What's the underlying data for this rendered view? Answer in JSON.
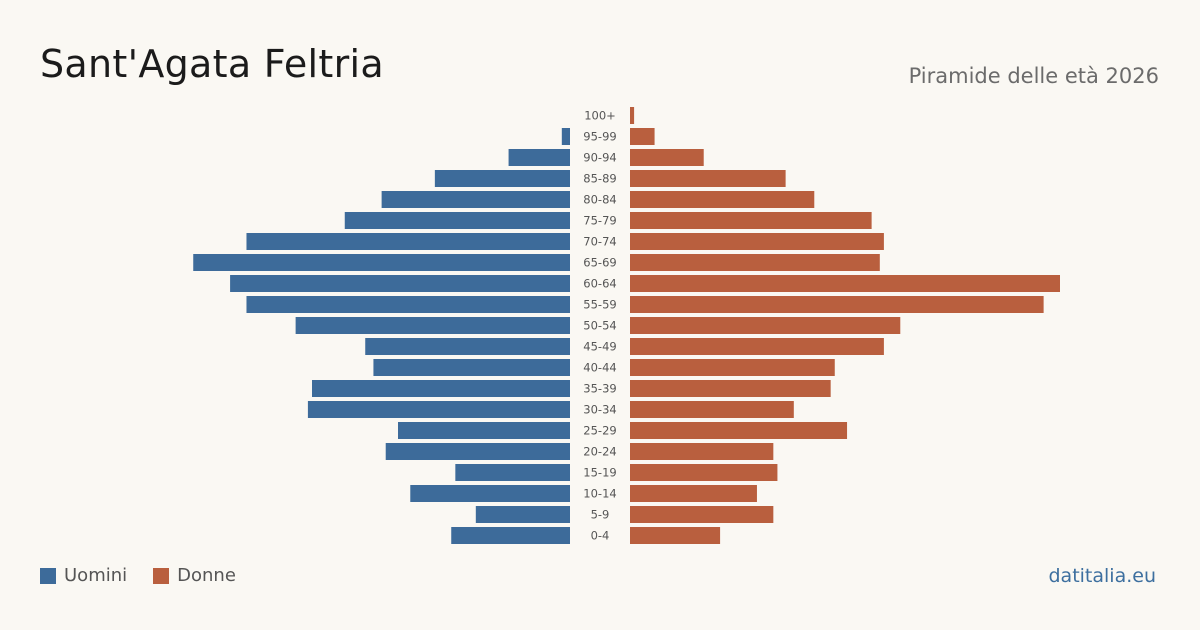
{
  "header": {
    "title": "Sant'Agata Feltria",
    "subtitle": "Piramide delle età 2026"
  },
  "legend": {
    "male_label": "Uomini",
    "female_label": "Donne"
  },
  "footer": {
    "site": "datitalia.eu"
  },
  "colors": {
    "male": "#3d6b9a",
    "female": "#b95f3e",
    "background": "#faf8f3"
  },
  "chart_data": {
    "type": "bar",
    "orientation": "horizontal-pyramid",
    "categories": [
      "100+",
      "95-99",
      "90-94",
      "85-89",
      "80-84",
      "75-79",
      "70-74",
      "65-69",
      "60-64",
      "55-59",
      "50-54",
      "45-49",
      "40-44",
      "35-39",
      "30-34",
      "25-29",
      "20-24",
      "15-19",
      "10-14",
      "5-9",
      "0-4"
    ],
    "series": [
      {
        "name": "Uomini",
        "values": [
          0,
          2,
          15,
          33,
          46,
          55,
          79,
          92,
          83,
          79,
          67,
          50,
          48,
          63,
          64,
          42,
          45,
          28,
          39,
          23,
          29
        ]
      },
      {
        "name": "Donne",
        "values": [
          1,
          6,
          18,
          38,
          45,
          59,
          62,
          61,
          105,
          101,
          66,
          62,
          50,
          49,
          40,
          53,
          35,
          36,
          31,
          35,
          22
        ]
      }
    ],
    "xlim": [
      0,
      105
    ],
    "legend_position": "bottom-left",
    "grid": false
  }
}
